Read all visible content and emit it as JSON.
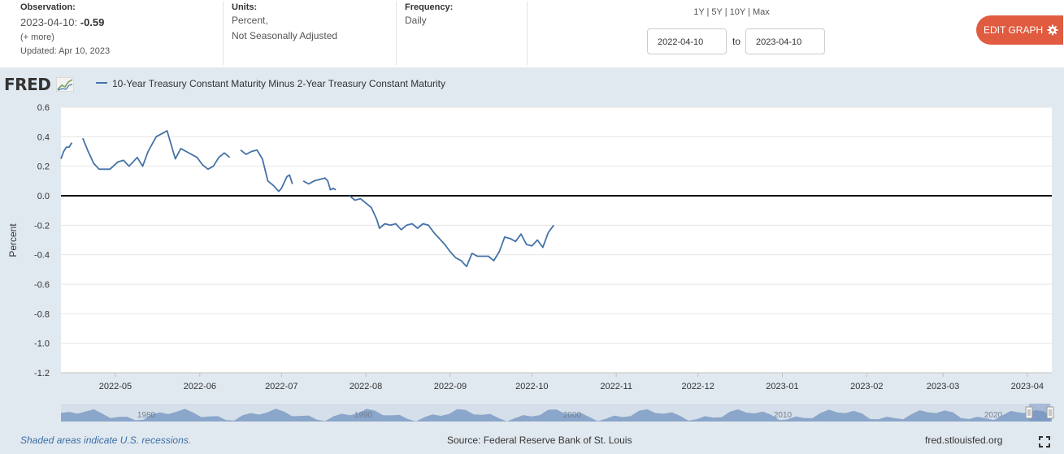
{
  "header": {
    "observation_label": "Observation:",
    "observation_date": "2023-04-10:",
    "observation_value": "-0.59",
    "observation_more": "(+ more)",
    "observation_updated": "Updated: Apr 10, 2023",
    "units_label": "Units:",
    "units_line1": "Percent,",
    "units_line2": "Not Seasonally Adjusted",
    "frequency_label": "Frequency:",
    "frequency_value": "Daily",
    "range_links": "1Y | 5Y | 10Y | Max",
    "date_from": "2022-04-10",
    "date_to_label": "to",
    "date_to": "2023-04-10",
    "edit_button": "EDIT GRAPH"
  },
  "logo": "FRED",
  "legend_label": "10-Year Treasury Constant Maturity Minus 2-Year Treasury Constant Maturity",
  "footer": {
    "recession_note": "Shaded areas indicate U.S. recessions.",
    "source": "Source: Federal Reserve Bank of St. Louis",
    "url": "fred.stlouisfed.org"
  },
  "colors": {
    "series": "#4572a7",
    "band": "#e1e9f0",
    "accent": "#e05b40",
    "zero_line": "#000000",
    "navigator": "#7d9cc4"
  },
  "icons": [
    "gear-icon",
    "fullscreen-icon",
    "fred-chart-icon"
  ],
  "chart_data": {
    "type": "line",
    "title": "10-Year Treasury Constant Maturity Minus 2-Year Treasury Constant Maturity",
    "ylabel": "Percent",
    "xlabel": "",
    "ylim": [
      -1.2,
      0.6
    ],
    "yticks": [
      0.6,
      0.4,
      0.2,
      0.0,
      -0.2,
      -0.4,
      -0.6,
      -0.8,
      -1.0,
      -1.2
    ],
    "ytick_labels": [
      "0.6",
      "0.4",
      "0.2",
      "0.0",
      "-0.2",
      "-0.4",
      "-0.6",
      "-0.8",
      "-1.0",
      "-1.2"
    ],
    "x_start": "2022-04-11",
    "x_end": "2023-04-10",
    "xticks": [
      {
        "date": "2022-05-01",
        "label": "2022-05"
      },
      {
        "date": "2022-06-01",
        "label": "2022-06"
      },
      {
        "date": "2022-07-01",
        "label": "2022-07"
      },
      {
        "date": "2022-08-01",
        "label": "2022-08"
      },
      {
        "date": "2022-09-01",
        "label": "2022-09"
      },
      {
        "date": "2022-10-01",
        "label": "2022-10"
      },
      {
        "date": "2022-11-01",
        "label": "2022-11"
      },
      {
        "date": "2022-12-01",
        "label": "2022-12"
      },
      {
        "date": "2023-01-01",
        "label": "2023-01"
      },
      {
        "date": "2023-02-01",
        "label": "2023-02"
      },
      {
        "date": "2023-03-01",
        "label": "2023-03"
      },
      {
        "date": "2023-04-01",
        "label": "2023-04"
      }
    ],
    "navigator_labels": [
      "1980",
      "1990",
      "2000",
      "2010",
      "2020"
    ],
    "series": [
      {
        "name": "10-Year Treasury Constant Maturity Minus 2-Year Treasury Constant Maturity",
        "segments": [
          [
            [
              "2022-04-11",
              0.25
            ],
            [
              "2022-04-12",
              0.3
            ],
            [
              "2022-04-13",
              0.33
            ],
            [
              "2022-04-14",
              0.33
            ],
            [
              "2022-04-15",
              0.36
            ]
          ],
          [
            [
              "2022-04-19",
              0.39
            ],
            [
              "2022-04-21",
              0.3
            ],
            [
              "2022-04-23",
              0.22
            ],
            [
              "2022-04-25",
              0.18
            ],
            [
              "2022-04-27",
              0.18
            ],
            [
              "2022-04-29",
              0.18
            ],
            [
              "2022-05-02",
              0.23
            ],
            [
              "2022-05-04",
              0.24
            ],
            [
              "2022-05-06",
              0.2
            ],
            [
              "2022-05-09",
              0.26
            ],
            [
              "2022-05-11",
              0.2
            ],
            [
              "2022-05-13",
              0.3
            ],
            [
              "2022-05-16",
              0.4
            ],
            [
              "2022-05-18",
              0.42
            ],
            [
              "2022-05-20",
              0.44
            ],
            [
              "2022-05-23",
              0.25
            ],
            [
              "2022-05-25",
              0.32
            ],
            [
              "2022-05-27",
              0.3
            ],
            [
              "2022-05-31",
              0.26
            ],
            [
              "2022-06-02",
              0.21
            ],
            [
              "2022-06-04",
              0.18
            ],
            [
              "2022-06-06",
              0.2
            ],
            [
              "2022-06-08",
              0.26
            ],
            [
              "2022-06-10",
              0.29
            ],
            [
              "2022-06-12",
              0.26
            ]
          ],
          [
            [
              "2022-06-16",
              0.31
            ],
            [
              "2022-06-18",
              0.28
            ],
            [
              "2022-06-20",
              0.3
            ],
            [
              "2022-06-22",
              0.31
            ],
            [
              "2022-06-24",
              0.25
            ],
            [
              "2022-06-26",
              0.1
            ],
            [
              "2022-06-28",
              0.07
            ],
            [
              "2022-06-30",
              0.03
            ],
            [
              "2022-07-01",
              0.05
            ],
            [
              "2022-07-03",
              0.13
            ],
            [
              "2022-07-04",
              0.14
            ],
            [
              "2022-07-05",
              0.08
            ]
          ],
          [
            [
              "2022-07-09",
              0.1
            ],
            [
              "2022-07-11",
              0.08
            ],
            [
              "2022-07-13",
              0.1
            ],
            [
              "2022-07-15",
              0.11
            ],
            [
              "2022-07-17",
              0.12
            ],
            [
              "2022-07-18",
              0.1
            ],
            [
              "2022-07-19",
              0.04
            ],
            [
              "2022-07-20",
              0.05
            ],
            [
              "2022-07-21",
              0.04
            ]
          ],
          [
            [
              "2022-07-26",
              0.0
            ],
            [
              "2022-07-28",
              -0.03
            ],
            [
              "2022-07-30",
              -0.02
            ],
            [
              "2022-08-01",
              -0.05
            ],
            [
              "2022-08-03",
              -0.08
            ],
            [
              "2022-08-05",
              -0.16
            ],
            [
              "2022-08-06",
              -0.22
            ],
            [
              "2022-08-08",
              -0.19
            ],
            [
              "2022-08-10",
              -0.2
            ],
            [
              "2022-08-12",
              -0.19
            ],
            [
              "2022-08-14",
              -0.23
            ],
            [
              "2022-08-16",
              -0.2
            ],
            [
              "2022-08-18",
              -0.19
            ],
            [
              "2022-08-20",
              -0.22
            ],
            [
              "2022-08-22",
              -0.19
            ],
            [
              "2022-08-24",
              -0.2
            ],
            [
              "2022-08-26",
              -0.25
            ],
            [
              "2022-08-28",
              -0.29
            ],
            [
              "2022-08-30",
              -0.33
            ],
            [
              "2022-09-01",
              -0.38
            ],
            [
              "2022-09-03",
              -0.42
            ],
            [
              "2022-09-05",
              -0.44
            ],
            [
              "2022-09-07",
              -0.48
            ],
            [
              "2022-09-09",
              -0.39
            ],
            [
              "2022-09-11",
              -0.41
            ],
            [
              "2022-09-13",
              -0.41
            ],
            [
              "2022-09-15",
              -0.41
            ],
            [
              "2022-09-17",
              -0.44
            ],
            [
              "2022-09-19",
              -0.38
            ],
            [
              "2022-09-21",
              -0.28
            ],
            [
              "2022-09-23",
              -0.29
            ],
            [
              "2022-09-25",
              -0.31
            ],
            [
              "2022-09-27",
              -0.26
            ],
            [
              "2022-09-29",
              -0.33
            ],
            [
              "2022-10-01",
              -0.34
            ],
            [
              "2022-10-03",
              -0.3
            ],
            [
              "2022-10-05",
              -0.35
            ],
            [
              "2022-10-07",
              -0.25
            ],
            [
              "2022-10-09",
              -0.2
            ]
          ]
        ]
      }
    ]
  }
}
